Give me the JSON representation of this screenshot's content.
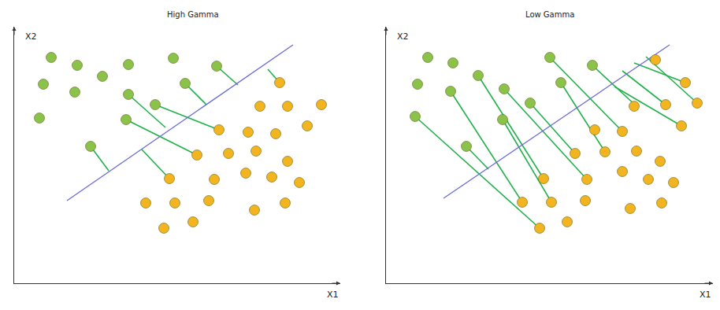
{
  "chart_data": [
    {
      "type": "scatter",
      "title": "High Gamma",
      "xlabel": "X1",
      "ylabel": "X2",
      "xlim": [
        0,
        414
      ],
      "ylim": [
        0,
        326
      ],
      "tick_labels": false,
      "grid": false,
      "series": [
        {
          "color": "#8bc34a",
          "marker": "circle",
          "x": [
            47,
            80,
            112,
            145,
            202,
            257,
            37,
            77,
            145,
            217,
            179,
            32,
            142,
            97
          ],
          "y": [
            287,
            277,
            263,
            278,
            286,
            276,
            253,
            243,
            240,
            254,
            227,
            210,
            208,
            174
          ]
        },
        {
          "color": "#f2b51f",
          "marker": "circle",
          "x": [
            337,
            312,
            347,
            390,
            372,
            260,
            297,
            332,
            232,
            272,
            307,
            347,
            197,
            254,
            294,
            327,
            362,
            167,
            204,
            247,
            305,
            344,
            190,
            227
          ],
          "y": [
            255,
            225,
            225,
            227,
            200,
            195,
            192,
            190,
            163,
            165,
            168,
            155,
            133,
            132,
            140,
            135,
            128,
            102,
            102,
            105,
            93,
            102,
            70,
            78
          ]
        }
      ],
      "boundary": {
        "color": "#6a6ad8",
        "x": [
          67,
          354
        ],
        "y": [
          105,
          303
        ]
      },
      "links": {
        "color": "#22b14c",
        "segments": [
          [
            257,
            276,
            284,
            252
          ],
          [
            217,
            254,
            244,
            227
          ],
          [
            145,
            240,
            192,
            198
          ],
          [
            179,
            227,
            260,
            195
          ],
          [
            142,
            208,
            232,
            163
          ],
          [
            97,
            174,
            120,
            143
          ],
          [
            322,
            272,
            337,
            255
          ],
          [
            162,
            170,
            197,
            133
          ]
        ]
      }
    },
    {
      "type": "scatter",
      "title": "Low Gamma",
      "xlabel": "X1",
      "ylabel": "X2",
      "xlim": [
        0,
        415
      ],
      "ylim": [
        0,
        326
      ],
      "tick_labels": false,
      "grid": false,
      "series": [
        {
          "color": "#8bc34a",
          "marker": "circle",
          "x": [
            53,
            85,
            117,
            208,
            262,
            40,
            82,
            150,
            222,
            183,
            148,
            37,
            102
          ],
          "y": [
            287,
            280,
            264,
            287,
            277,
            253,
            244,
            247,
            255,
            229,
            208,
            212,
            174
          ]
        },
        {
          "color": "#f2b51f",
          "marker": "circle",
          "x": [
            342,
            380,
            395,
            315,
            355,
            375,
            265,
            300,
            240,
            278,
            318,
            348,
            200,
            255,
            300,
            333,
            365,
            173,
            210,
            253,
            310,
            350,
            195,
            230
          ],
          "y": [
            284,
            255,
            229,
            225,
            227,
            200,
            195,
            193,
            165,
            167,
            168,
            155,
            133,
            132,
            142,
            132,
            128,
            103,
            103,
            105,
            95,
            102,
            70,
            78
          ]
        }
      ],
      "boundary": {
        "color": "#6a6ad8",
        "x": [
          73,
          360
        ],
        "y": [
          108,
          303
        ]
      },
      "links": {
        "color": "#22b14c",
        "segments": [
          [
            37,
            212,
            195,
            70
          ],
          [
            82,
            244,
            173,
            103
          ],
          [
            102,
            174,
            130,
            145
          ],
          [
            148,
            208,
            210,
            103
          ],
          [
            117,
            264,
            200,
            133
          ],
          [
            150,
            247,
            255,
            132
          ],
          [
            183,
            229,
            240,
            165
          ],
          [
            208,
            287,
            300,
            193
          ],
          [
            222,
            255,
            278,
            167
          ],
          [
            262,
            277,
            318,
            225
          ],
          [
            290,
            250,
            375,
            200
          ],
          [
            300,
            270,
            355,
            227
          ],
          [
            315,
            280,
            380,
            255
          ],
          [
            330,
            288,
            395,
            229
          ]
        ]
      }
    }
  ]
}
